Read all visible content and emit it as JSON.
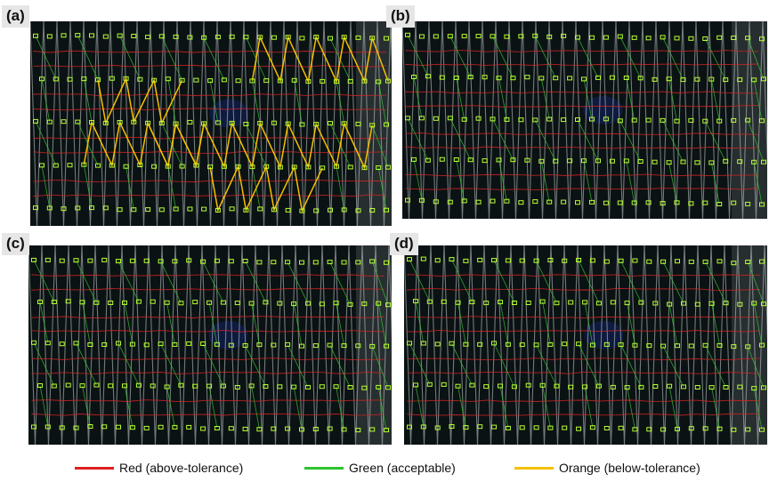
{
  "panels": [
    {
      "label": "(a)",
      "has_orange": true
    },
    {
      "label": "(b)",
      "has_orange": false
    },
    {
      "label": "(c)",
      "has_orange": false
    },
    {
      "label": "(d)",
      "has_orange": false
    }
  ],
  "legend": {
    "red": {
      "label": "Red (above-tolerance)",
      "color": "#e02020"
    },
    "green": {
      "label": "Green (acceptable)",
      "color": "#2ec42e"
    },
    "orange": {
      "label": "Orange (below-tolerance)",
      "color": "#f5c000"
    }
  },
  "overlay_colors": {
    "red": "#d42424",
    "green": "#33cc33",
    "orange": "#f5c000",
    "fabric_light": "#c8d0d0",
    "fabric_dark": "#0b1214"
  }
}
